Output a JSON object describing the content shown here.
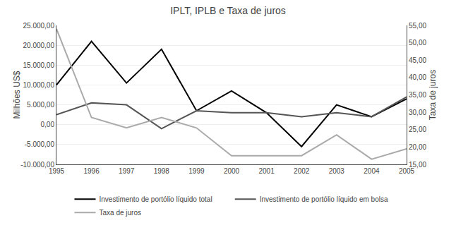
{
  "chart_data": {
    "type": "line",
    "title": "IPLT, IPLB e Taxa de juros",
    "ylabel": "Milhões US$",
    "y2label": "Taxa de juros",
    "x": [
      1995,
      1996,
      1997,
      1998,
      1999,
      2000,
      2001,
      2002,
      2003,
      2004,
      2005
    ],
    "xlim": [
      1995,
      2005
    ],
    "xticks": [
      1995,
      1996,
      1997,
      1998,
      1999,
      2000,
      2001,
      2002,
      2003,
      2004,
      2005
    ],
    "series": [
      {
        "name": "Investimento de portólio líquido total",
        "color": "#000000",
        "axis": "y",
        "values": [
          10000,
          21000,
          10500,
          19000,
          3500,
          8500,
          3000,
          -5500,
          5000,
          2000,
          6500
        ]
      },
      {
        "name": "Investimento de portólio líquido em bolsa",
        "color": "#555555",
        "axis": "y",
        "values": [
          2500,
          5500,
          5000,
          -1000,
          3500,
          3000,
          3000,
          2000,
          3000,
          2000,
          7000
        ]
      },
      {
        "name": "Taxa de juros",
        "color": "#aaaaaa",
        "axis": "y2",
        "values": [
          54,
          28.5,
          25.5,
          28.5,
          25.5,
          17.5,
          17.5,
          17.5,
          23.5,
          16.5,
          19.5
        ]
      }
    ],
    "ylim": [
      -10000,
      25000
    ],
    "yticks": [
      {
        "value": -10000,
        "label": "-10.000,00"
      },
      {
        "value": -5000,
        "label": "-5.000,00"
      },
      {
        "value": 0,
        "label": "0,00"
      },
      {
        "value": 5000,
        "label": "5.000,00"
      },
      {
        "value": 10000,
        "label": "10.000,00"
      },
      {
        "value": 15000,
        "label": "15.000,00"
      },
      {
        "value": 20000,
        "label": "20.000,00"
      },
      {
        "value": 25000,
        "label": "25.000,00"
      }
    ],
    "y2lim": [
      15,
      55
    ],
    "y2ticks": [
      {
        "value": 15,
        "label": "15,00"
      },
      {
        "value": 20,
        "label": "20,00"
      },
      {
        "value": 25,
        "label": "25,00"
      },
      {
        "value": 30,
        "label": "30,00"
      },
      {
        "value": 35,
        "label": "35,00"
      },
      {
        "value": 40,
        "label": "40,00"
      },
      {
        "value": 45,
        "label": "45,00"
      },
      {
        "value": 50,
        "label": "50,00"
      },
      {
        "value": 55,
        "label": "55,00"
      }
    ],
    "grid": true,
    "legend": "bottom"
  }
}
